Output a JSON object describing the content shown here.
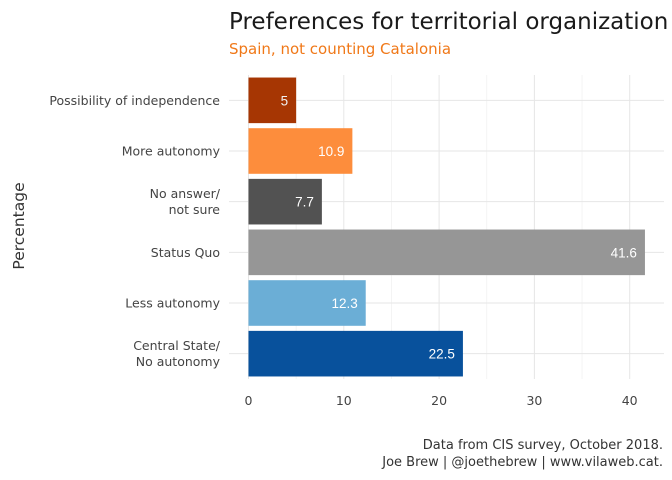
{
  "chart_data": {
    "type": "bar",
    "orientation": "horizontal",
    "title": "Preferences for territorial organization",
    "subtitle": "Spain, not counting Catalonia",
    "xlabel": "",
    "ylabel": "Percentage",
    "xlim": [
      0,
      43.7
    ],
    "x_ticks": [
      0,
      10,
      20,
      30,
      40
    ],
    "grid": true,
    "legend": "none",
    "categories": [
      [
        "Possibility of independence"
      ],
      [
        "More autonomy"
      ],
      [
        "No answer/",
        "not sure"
      ],
      [
        "Status Quo"
      ],
      [
        "Less autonomy"
      ],
      [
        "Central State/",
        "No autonomy"
      ]
    ],
    "values": [
      5,
      10.9,
      7.7,
      41.6,
      12.3,
      22.5
    ],
    "value_labels": [
      "5",
      "10.9",
      "7.7",
      "41.6",
      "12.3",
      "22.5"
    ],
    "colors": [
      "#a63603",
      "#fd8d3c",
      "#525252",
      "#969696",
      "#6baed6",
      "#08519c"
    ],
    "label_color": "#ffffff",
    "label_color_first": "#f0f0f0",
    "caption": [
      "Data from CIS survey, October 2018.",
      "Joe Brew | @joethebrew | www.vilaweb.cat."
    ]
  }
}
